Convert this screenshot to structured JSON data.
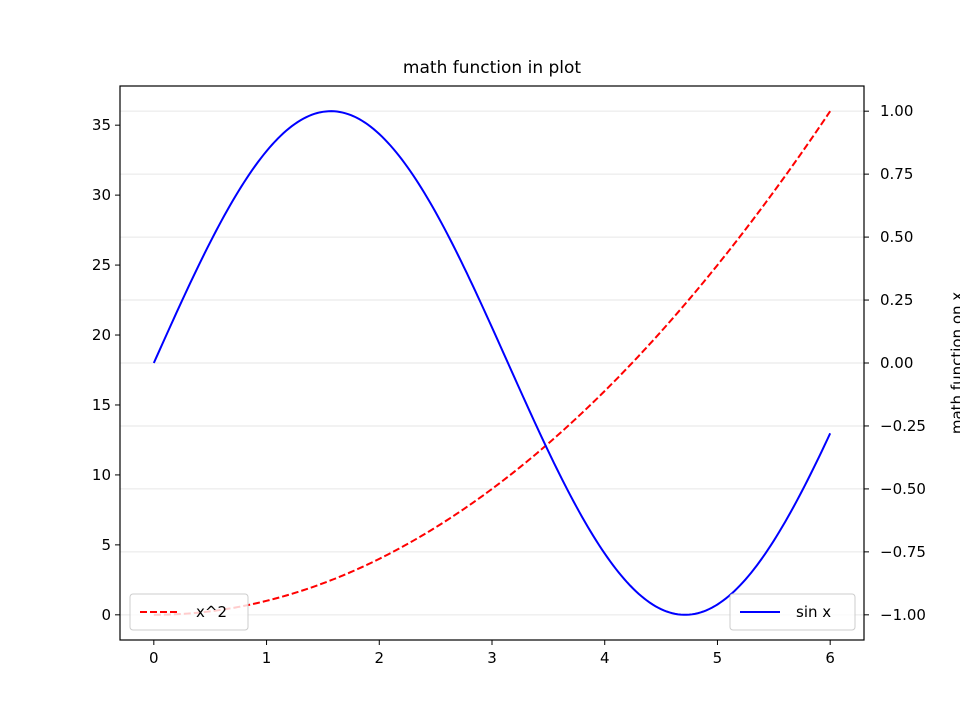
{
  "chart_data": {
    "type": "line",
    "title": "math function in plot",
    "xlabel": "",
    "ylabel_left": "",
    "ylabel_right": "math function on x",
    "xlim": [
      -0.3,
      6.3
    ],
    "ylim_left": [
      -1.8,
      37.8
    ],
    "ylim_right": [
      -1.1,
      1.1
    ],
    "x_ticks": [
      0,
      1,
      2,
      3,
      4,
      5,
      6
    ],
    "x_tick_labels": [
      "0",
      "1",
      "2",
      "3",
      "4",
      "5",
      "6"
    ],
    "y_left_ticks": [
      0,
      5,
      10,
      15,
      20,
      25,
      30,
      35
    ],
    "y_left_tick_labels": [
      "0",
      "5",
      "10",
      "15",
      "20",
      "25",
      "30",
      "35"
    ],
    "y_right_ticks": [
      -1.0,
      -0.75,
      -0.5,
      -0.25,
      0.0,
      0.25,
      0.5,
      0.75,
      1.0
    ],
    "y_right_tick_labels": [
      "−1.00",
      "−0.75",
      "−0.50",
      "−0.25",
      "0.00",
      "0.25",
      "0.50",
      "0.75",
      "1.00"
    ],
    "grid": "horizontal (right axis)",
    "series": [
      {
        "name": "x^2",
        "axis": "left",
        "color": "#ff0000",
        "style": "dashed",
        "x": [
          0,
          0.5,
          1,
          1.5,
          2,
          2.5,
          3,
          3.5,
          4,
          4.5,
          5,
          5.5,
          6
        ],
        "y": [
          0,
          0.25,
          1,
          2.25,
          4,
          6.25,
          9,
          12.25,
          16,
          20.25,
          25,
          30.25,
          36
        ]
      },
      {
        "name": "sin x",
        "axis": "right",
        "color": "#0000ff",
        "style": "solid",
        "x": [
          0,
          0.25,
          0.5,
          0.75,
          1,
          1.25,
          1.5,
          1.75,
          2,
          2.25,
          2.5,
          2.75,
          3,
          3.25,
          3.5,
          3.75,
          4,
          4.25,
          4.5,
          4.75,
          5,
          5.25,
          5.5,
          5.75,
          6
        ],
        "y": [
          0,
          0.247,
          0.479,
          0.682,
          0.841,
          0.949,
          0.997,
          0.984,
          0.909,
          0.778,
          0.598,
          0.382,
          0.141,
          -0.108,
          -0.351,
          -0.572,
          -0.757,
          -0.895,
          -0.978,
          -0.999,
          -0.959,
          -0.859,
          -0.706,
          -0.508,
          -0.279
        ]
      }
    ],
    "legends": [
      {
        "entries": [
          "x^2"
        ],
        "placement": "lower-left"
      },
      {
        "entries": [
          "sin x"
        ],
        "placement": "lower-right"
      }
    ]
  }
}
